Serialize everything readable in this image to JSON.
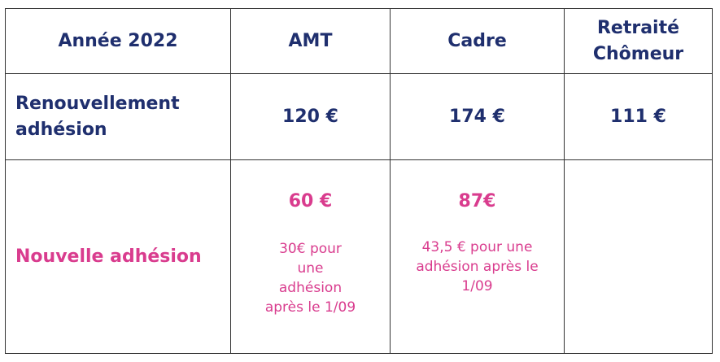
{
  "header": {
    "year": "Année 2022",
    "amt": "AMT",
    "cadre": "Cadre",
    "retraite_line1": "Retraité",
    "retraite_line2": "Chômeur"
  },
  "renouvellement": {
    "label_line1": "Renouvellement",
    "label_line2": "adhésion",
    "amt": "120 €",
    "cadre": "174 €",
    "retraite": "111 €"
  },
  "nouvelle": {
    "label": "Nouvelle adhésion",
    "amt_price": "60 €",
    "amt_note_lines": [
      "30€ pour",
      "une",
      "adhésion",
      "après le 1/09"
    ],
    "cadre_price": "87€",
    "cadre_note_lines": [
      "43,5 € pour une",
      "adhésion après le",
      "1/09"
    ],
    "retraite": ""
  },
  "colors": {
    "navy": "#1f2f6e",
    "pink": "#d93c8e",
    "border": "#333333"
  }
}
